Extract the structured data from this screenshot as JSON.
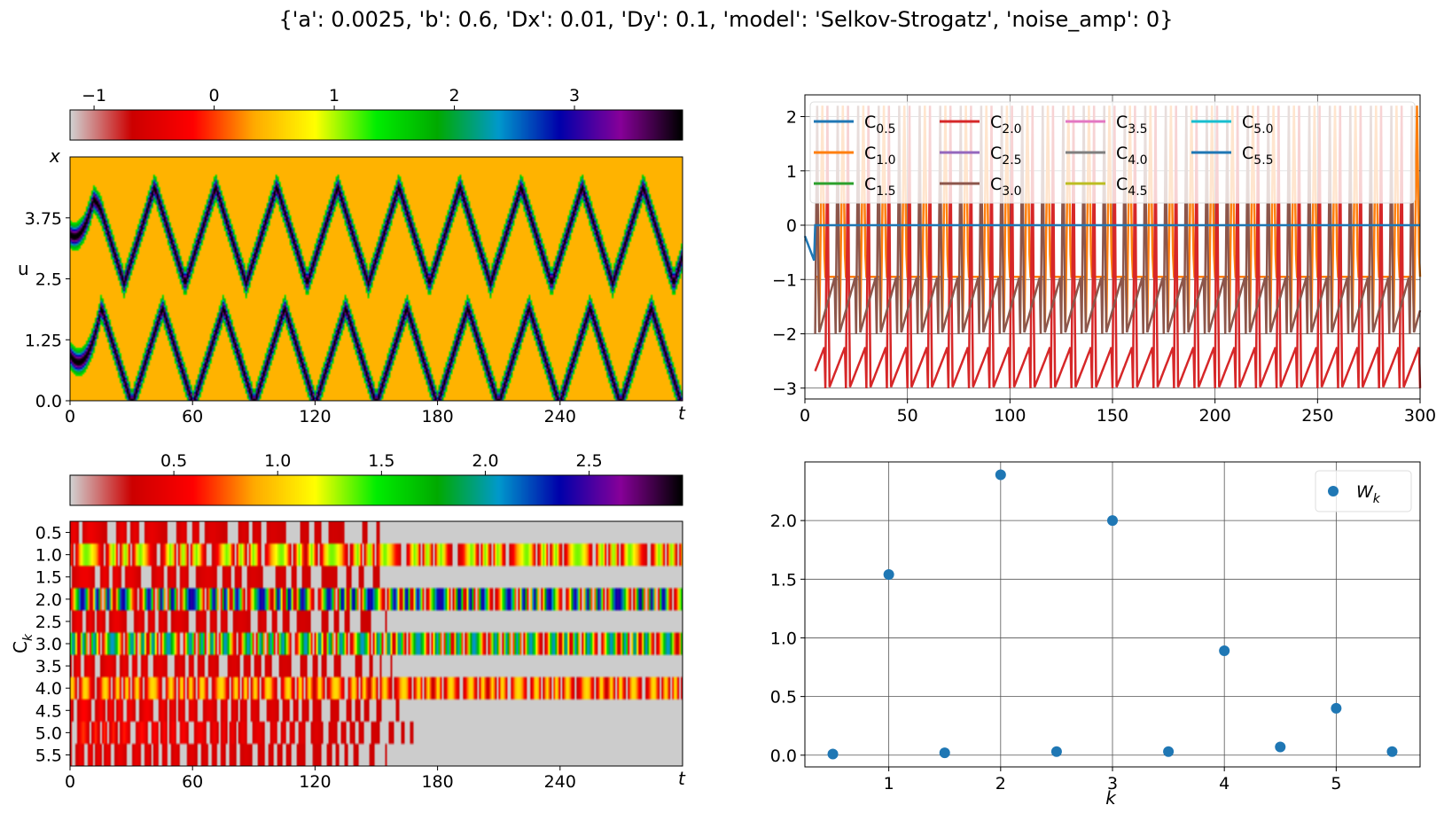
{
  "figure": {
    "title": "{'a': 0.0025, 'b': 0.6, 'Dx': 0.01, 'Dy': 0.1, 'model': 'Selkov-Strogatz', 'noise_amp': 0}"
  },
  "colors": {
    "colormap": [
      "#d0d0d0",
      "#cc0000",
      "#ff0000",
      "#ffaa00",
      "#ffff00",
      "#00ee00",
      "#00aa00",
      "#0099cc",
      "#0000aa",
      "#880099",
      "#000000"
    ],
    "field_background": "#ffb300",
    "series_default": "#1f77b4"
  },
  "chart_data": [
    {
      "id": "field",
      "type": "heatmap",
      "xlabel": "t",
      "ylabel": "u",
      "ylabel_top": "x",
      "x_ticks": [
        "0",
        "60",
        "120",
        "180",
        "240"
      ],
      "y_ticks": [
        "0.0",
        "1.25",
        "2.5",
        "3.75"
      ],
      "xlim": [
        0,
        300
      ],
      "ylim": [
        0,
        5.0
      ],
      "colorbar": {
        "ticks": [
          "−1",
          "0",
          "1",
          "2",
          "3"
        ],
        "range": [
          -1.2,
          3.9
        ]
      },
      "wave_period": 30,
      "band_centers_u": [
        0.9,
        3.4
      ],
      "band_amplitude": 1.0
    },
    {
      "id": "coeff_timeseries",
      "type": "line",
      "xlim": [
        0,
        300
      ],
      "ylim": [
        -3.2,
        2.4
      ],
      "x_ticks": [
        "0",
        "50",
        "100",
        "150",
        "200",
        "250",
        "300"
      ],
      "y_ticks": [
        "−3",
        "−2",
        "−1",
        "0",
        "1",
        "2"
      ],
      "grid": true,
      "legend": "top",
      "series": [
        {
          "name": "C",
          "sub": "0.5",
          "color": "#1f77b4"
        },
        {
          "name": "C",
          "sub": "1.0",
          "color": "#ff7f0e"
        },
        {
          "name": "C",
          "sub": "1.5",
          "color": "#2ca02c"
        },
        {
          "name": "C",
          "sub": "2.0",
          "color": "#d62728"
        },
        {
          "name": "C",
          "sub": "2.5",
          "color": "#9467bd"
        },
        {
          "name": "C",
          "sub": "3.0",
          "color": "#8c564b"
        },
        {
          "name": "C",
          "sub": "3.5",
          "color": "#e377c2"
        },
        {
          "name": "C",
          "sub": "4.0",
          "color": "#7f7f7f"
        },
        {
          "name": "C",
          "sub": "4.5",
          "color": "#bcbd22"
        },
        {
          "name": "C",
          "sub": "5.0",
          "color": "#17becf"
        },
        {
          "name": "C",
          "sub": "5.5",
          "color": "#1f77b4"
        }
      ],
      "period": 10,
      "c20_min": -3.0,
      "c20_max": 2.2,
      "c30_max": 2.2,
      "c10_min": -1.9
    },
    {
      "id": "coeff_heatmap",
      "type": "heatmap",
      "xlabel": "t",
      "ylabel": "C",
      "ylabel_sub": "k",
      "x_ticks": [
        "0",
        "60",
        "120",
        "180",
        "240"
      ],
      "xlim": [
        0,
        300
      ],
      "rows": [
        "0.5",
        "1.0",
        "1.5",
        "2.0",
        "2.5",
        "3.0",
        "3.5",
        "4.0",
        "4.5",
        "5.0",
        "5.5"
      ],
      "colorbar": {
        "ticks": [
          "0.5",
          "1.0",
          "1.5",
          "2.0",
          "2.5"
        ],
        "range": [
          0,
          2.95
        ]
      },
      "row_amplitude": [
        0.3,
        1.2,
        0.3,
        2.4,
        0.3,
        2.0,
        0.3,
        0.9,
        0.4,
        0.5,
        0.3
      ]
    },
    {
      "id": "spectrum",
      "type": "scatter",
      "xlabel": "k",
      "xlim": [
        0.25,
        5.75
      ],
      "ylim": [
        -0.1,
        2.5
      ],
      "x_ticks": [
        "1",
        "2",
        "3",
        "4",
        "5"
      ],
      "y_ticks": [
        "0.0",
        "0.5",
        "1.0",
        "1.5",
        "2.0"
      ],
      "grid": true,
      "legend": "top-right",
      "series": [
        {
          "name": "W",
          "sub": "k",
          "color": "#1f77b4",
          "x": [
            0.5,
            1.0,
            1.5,
            2.0,
            2.5,
            3.0,
            3.5,
            4.0,
            4.5,
            5.0,
            5.5
          ],
          "y": [
            0.01,
            1.54,
            0.02,
            2.39,
            0.03,
            2.0,
            0.03,
            0.89,
            0.07,
            0.4,
            0.03
          ]
        }
      ]
    }
  ]
}
